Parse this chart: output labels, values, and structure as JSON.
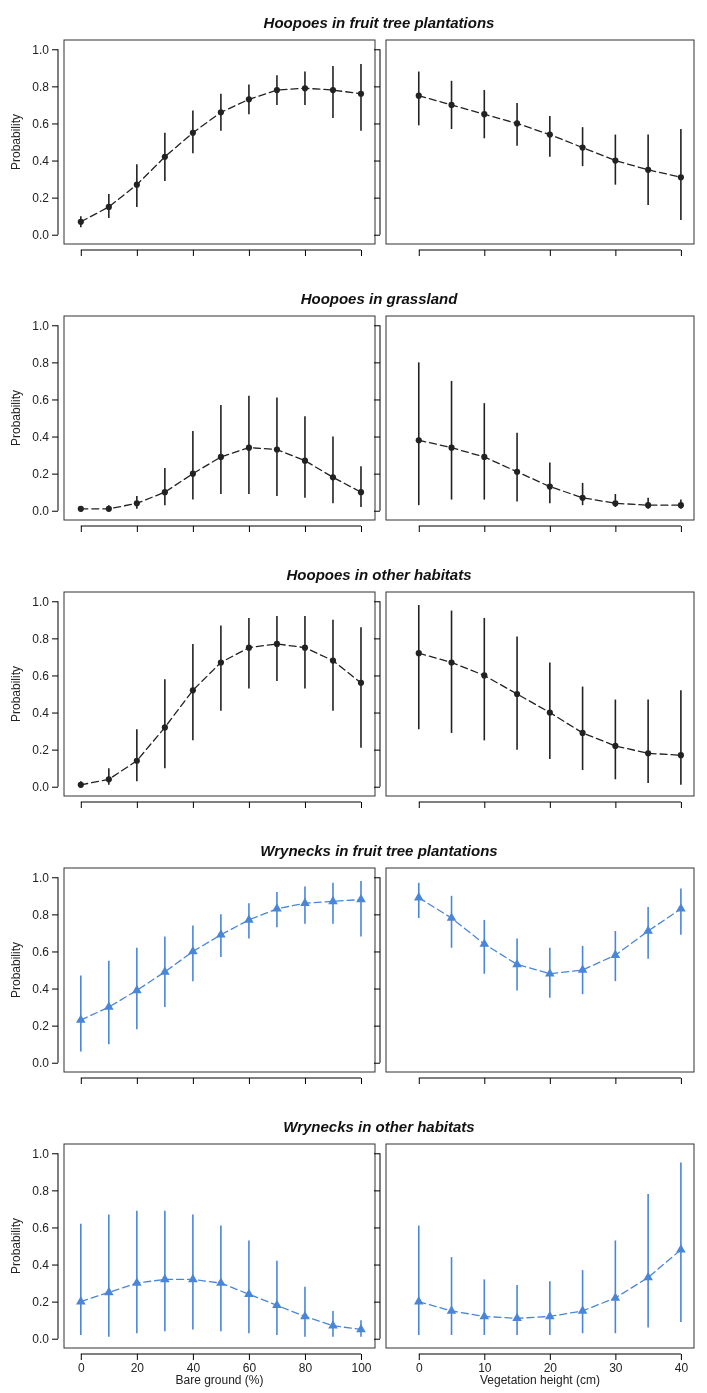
{
  "chart_data": [
    {
      "type": "line",
      "title": "Hoopoes in fruit tree plantations",
      "ylabel": "Probability",
      "x": [
        0,
        10,
        20,
        30,
        40,
        50,
        60,
        70,
        80,
        90,
        100
      ],
      "xlim": [
        -6,
        105
      ],
      "xticks": [
        0,
        20,
        40,
        60,
        80,
        100
      ],
      "ylim": [
        -0.05,
        1.05
      ],
      "yticks": [
        {
          "value": 0,
          "label": "0.0"
        },
        {
          "value": 0.2,
          "label": "0.2"
        },
        {
          "value": 0.4,
          "label": "0.4"
        },
        {
          "value": 0.6,
          "label": "0.6"
        },
        {
          "value": 0.8,
          "label": "0.8"
        },
        {
          "value": 1,
          "label": "1.0"
        }
      ],
      "tick_labels": "y",
      "marker": "circle",
      "line_style": "dashed",
      "series": [
        {
          "color": "#222222",
          "values": [
            0.07,
            0.15,
            0.27,
            0.42,
            0.55,
            0.66,
            0.73,
            0.78,
            0.79,
            0.78,
            0.76
          ],
          "errors": [
            [
              0.04,
              0.1
            ],
            [
              0.09,
              0.22
            ],
            [
              0.15,
              0.38
            ],
            [
              0.29,
              0.55
            ],
            [
              0.44,
              0.67
            ],
            [
              0.56,
              0.76
            ],
            [
              0.65,
              0.81
            ],
            [
              0.7,
              0.86
            ],
            [
              0.7,
              0.88
            ],
            [
              0.63,
              0.91
            ],
            [
              0.56,
              0.92
            ]
          ]
        }
      ]
    },
    {
      "type": "line",
      "x": [
        0,
        5,
        10,
        15,
        20,
        25,
        30,
        35,
        40
      ],
      "xlim": [
        -5,
        42
      ],
      "xticks": [
        0,
        10,
        20,
        30,
        40
      ],
      "ylim": [
        -0.05,
        1.05
      ],
      "yticks": [
        0,
        0.2,
        0.4,
        0.6,
        0.8,
        1
      ],
      "tick_labels": false,
      "marker": "circle",
      "line_style": "dashed",
      "series": [
        {
          "color": "#222222",
          "values": [
            0.75,
            0.7,
            0.65,
            0.6,
            0.54,
            0.47,
            0.4,
            0.35,
            0.31
          ],
          "errors": [
            [
              0.59,
              0.88
            ],
            [
              0.57,
              0.83
            ],
            [
              0.52,
              0.78
            ],
            [
              0.48,
              0.71
            ],
            [
              0.42,
              0.64
            ],
            [
              0.37,
              0.58
            ],
            [
              0.27,
              0.54
            ],
            [
              0.16,
              0.54
            ],
            [
              0.08,
              0.57
            ]
          ]
        }
      ]
    },
    {
      "type": "line",
      "title": "Hoopoes in grassland",
      "ylabel": "Probability",
      "x": [
        0,
        10,
        20,
        30,
        40,
        50,
        60,
        70,
        80,
        90,
        100
      ],
      "xlim": [
        -6,
        105
      ],
      "xticks": [
        0,
        20,
        40,
        60,
        80,
        100
      ],
      "ylim": [
        -0.05,
        1.05
      ],
      "yticks": [
        {
          "value": 0,
          "label": "0.0"
        },
        {
          "value": 0.2,
          "label": "0.2"
        },
        {
          "value": 0.4,
          "label": "0.4"
        },
        {
          "value": 0.6,
          "label": "0.6"
        },
        {
          "value": 0.8,
          "label": "0.8"
        },
        {
          "value": 1,
          "label": "1.0"
        }
      ],
      "tick_labels": "y",
      "marker": "circle",
      "line_style": "dashed",
      "series": [
        {
          "color": "#222222",
          "values": [
            0.01,
            0.01,
            0.04,
            0.1,
            0.2,
            0.29,
            0.34,
            0.33,
            0.27,
            0.18,
            0.1
          ],
          "errors": [
            [
              0,
              0.02
            ],
            [
              0,
              0.03
            ],
            [
              0.01,
              0.08
            ],
            [
              0.03,
              0.23
            ],
            [
              0.06,
              0.43
            ],
            [
              0.09,
              0.57
            ],
            [
              0.09,
              0.62
            ],
            [
              0.08,
              0.61
            ],
            [
              0.07,
              0.51
            ],
            [
              0.04,
              0.4
            ],
            [
              0.02,
              0.24
            ]
          ]
        }
      ]
    },
    {
      "type": "line",
      "x": [
        0,
        5,
        10,
        15,
        20,
        25,
        30,
        35,
        40
      ],
      "xlim": [
        -5,
        42
      ],
      "xticks": [
        0,
        10,
        20,
        30,
        40
      ],
      "ylim": [
        -0.05,
        1.05
      ],
      "yticks": [
        0,
        0.2,
        0.4,
        0.6,
        0.8,
        1
      ],
      "tick_labels": false,
      "marker": "circle",
      "line_style": "dashed",
      "series": [
        {
          "color": "#222222",
          "values": [
            0.38,
            0.34,
            0.29,
            0.21,
            0.13,
            0.07,
            0.04,
            0.03,
            0.03
          ],
          "errors": [
            [
              0.03,
              0.8
            ],
            [
              0.06,
              0.7
            ],
            [
              0.06,
              0.58
            ],
            [
              0.05,
              0.42
            ],
            [
              0.04,
              0.26
            ],
            [
              0.03,
              0.15
            ],
            [
              0.02,
              0.09
            ],
            [
              0.01,
              0.07
            ],
            [
              0.01,
              0.06
            ]
          ]
        }
      ]
    },
    {
      "type": "line",
      "title": "Hoopoes in other habitats",
      "ylabel": "Probability",
      "x": [
        0,
        10,
        20,
        30,
        40,
        50,
        60,
        70,
        80,
        90,
        100
      ],
      "xlim": [
        -6,
        105
      ],
      "xticks": [
        0,
        20,
        40,
        60,
        80,
        100
      ],
      "ylim": [
        -0.05,
        1.05
      ],
      "yticks": [
        {
          "value": 0,
          "label": "0.0"
        },
        {
          "value": 0.2,
          "label": "0.2"
        },
        {
          "value": 0.4,
          "label": "0.4"
        },
        {
          "value": 0.6,
          "label": "0.6"
        },
        {
          "value": 0.8,
          "label": "0.8"
        },
        {
          "value": 1,
          "label": "1.0"
        }
      ],
      "tick_labels": "y",
      "marker": "circle",
      "line_style": "dashed",
      "series": [
        {
          "color": "#222222",
          "values": [
            0.01,
            0.04,
            0.14,
            0.32,
            0.52,
            0.67,
            0.75,
            0.77,
            0.75,
            0.68,
            0.56
          ],
          "errors": [
            [
              0,
              0.03
            ],
            [
              0.01,
              0.1
            ],
            [
              0.03,
              0.31
            ],
            [
              0.1,
              0.58
            ],
            [
              0.25,
              0.77
            ],
            [
              0.41,
              0.87
            ],
            [
              0.53,
              0.91
            ],
            [
              0.57,
              0.92
            ],
            [
              0.53,
              0.92
            ],
            [
              0.41,
              0.9
            ],
            [
              0.21,
              0.86
            ]
          ]
        }
      ]
    },
    {
      "type": "line",
      "x": [
        0,
        5,
        10,
        15,
        20,
        25,
        30,
        35,
        40
      ],
      "xlim": [
        -5,
        42
      ],
      "xticks": [
        0,
        10,
        20,
        30,
        40
      ],
      "ylim": [
        -0.05,
        1.05
      ],
      "yticks": [
        0,
        0.2,
        0.4,
        0.6,
        0.8,
        1
      ],
      "tick_labels": false,
      "marker": "circle",
      "line_style": "dashed",
      "series": [
        {
          "color": "#222222",
          "values": [
            0.72,
            0.67,
            0.6,
            0.5,
            0.4,
            0.29,
            0.22,
            0.18,
            0.17
          ],
          "errors": [
            [
              0.31,
              0.98
            ],
            [
              0.29,
              0.95
            ],
            [
              0.25,
              0.91
            ],
            [
              0.2,
              0.81
            ],
            [
              0.15,
              0.67
            ],
            [
              0.09,
              0.54
            ],
            [
              0.04,
              0.47
            ],
            [
              0.02,
              0.47
            ],
            [
              0.01,
              0.52
            ]
          ]
        }
      ]
    },
    {
      "type": "line",
      "title": "Wrynecks in fruit tree plantations",
      "ylabel": "Probability",
      "x": [
        0,
        10,
        20,
        30,
        40,
        50,
        60,
        70,
        80,
        90,
        100
      ],
      "xlim": [
        -6,
        105
      ],
      "xticks": [
        0,
        20,
        40,
        60,
        80,
        100
      ],
      "ylim": [
        -0.05,
        1.05
      ],
      "yticks": [
        {
          "value": 0,
          "label": "0.0"
        },
        {
          "value": 0.2,
          "label": "0.2"
        },
        {
          "value": 0.4,
          "label": "0.4"
        },
        {
          "value": 0.6,
          "label": "0.6"
        },
        {
          "value": 0.8,
          "label": "0.8"
        },
        {
          "value": 1,
          "label": "1.0"
        }
      ],
      "tick_labels": "y",
      "marker": "triangle",
      "line_style": "dashed",
      "series": [
        {
          "color": "#4a86d8",
          "values": [
            0.23,
            0.3,
            0.39,
            0.49,
            0.6,
            0.69,
            0.77,
            0.83,
            0.86,
            0.87,
            0.88
          ],
          "errors": [
            [
              0.06,
              0.47
            ],
            [
              0.1,
              0.55
            ],
            [
              0.18,
              0.62
            ],
            [
              0.3,
              0.68
            ],
            [
              0.44,
              0.74
            ],
            [
              0.57,
              0.8
            ],
            [
              0.67,
              0.86
            ],
            [
              0.73,
              0.92
            ],
            [
              0.75,
              0.95
            ],
            [
              0.75,
              0.97
            ],
            [
              0.68,
              0.98
            ]
          ]
        }
      ]
    },
    {
      "type": "line",
      "x": [
        0,
        5,
        10,
        15,
        20,
        25,
        30,
        35,
        40
      ],
      "xlim": [
        -5,
        42
      ],
      "xticks": [
        0,
        10,
        20,
        30,
        40
      ],
      "ylim": [
        -0.05,
        1.05
      ],
      "yticks": [
        0,
        0.2,
        0.4,
        0.6,
        0.8,
        1
      ],
      "tick_labels": false,
      "marker": "triangle",
      "line_style": "dashed",
      "series": [
        {
          "color": "#4a86d8",
          "values": [
            0.89,
            0.78,
            0.64,
            0.53,
            0.48,
            0.5,
            0.58,
            0.71,
            0.83
          ],
          "errors": [
            [
              0.78,
              0.97
            ],
            [
              0.62,
              0.9
            ],
            [
              0.48,
              0.77
            ],
            [
              0.39,
              0.67
            ],
            [
              0.35,
              0.62
            ],
            [
              0.37,
              0.63
            ],
            [
              0.44,
              0.71
            ],
            [
              0.56,
              0.84
            ],
            [
              0.69,
              0.94
            ]
          ]
        }
      ]
    },
    {
      "type": "line",
      "title": "Wrynecks in other habitats",
      "ylabel": "Probability",
      "xlabel": "Bare ground (%)",
      "x": [
        0,
        10,
        20,
        30,
        40,
        50,
        60,
        70,
        80,
        90,
        100
      ],
      "xlim": [
        -6,
        105
      ],
      "xticks": [
        0,
        20,
        40,
        60,
        80,
        100
      ],
      "ylim": [
        -0.05,
        1.05
      ],
      "yticks": [
        {
          "value": 0,
          "label": "0.0"
        },
        {
          "value": 0.2,
          "label": "0.2"
        },
        {
          "value": 0.4,
          "label": "0.4"
        },
        {
          "value": 0.6,
          "label": "0.6"
        },
        {
          "value": 0.8,
          "label": "0.8"
        },
        {
          "value": 1,
          "label": "1.0"
        }
      ],
      "marker": "triangle",
      "line_style": "dashed",
      "series": [
        {
          "color": "#4a86d8",
          "values": [
            0.2,
            0.25,
            0.3,
            0.32,
            0.32,
            0.3,
            0.24,
            0.18,
            0.12,
            0.07,
            0.05
          ],
          "errors": [
            [
              0.02,
              0.62
            ],
            [
              0.01,
              0.67
            ],
            [
              0.03,
              0.69
            ],
            [
              0.04,
              0.69
            ],
            [
              0.05,
              0.67
            ],
            [
              0.04,
              0.61
            ],
            [
              0.03,
              0.53
            ],
            [
              0.02,
              0.42
            ],
            [
              0.01,
              0.28
            ],
            [
              0.01,
              0.15
            ],
            [
              0.01,
              0.1
            ]
          ]
        }
      ]
    },
    {
      "type": "line",
      "xlabel": "Vegetation height (cm)",
      "x": [
        0,
        5,
        10,
        15,
        20,
        25,
        30,
        35,
        40
      ],
      "xlim": [
        -5,
        42
      ],
      "xticks": [
        0,
        10,
        20,
        30,
        40
      ],
      "ylim": [
        -0.05,
        1.05
      ],
      "yticks": [
        0,
        0.2,
        0.4,
        0.6,
        0.8,
        1
      ],
      "tick_labels": "x",
      "marker": "triangle",
      "line_style": "dashed",
      "series": [
        {
          "color": "#4a86d8",
          "values": [
            0.2,
            0.15,
            0.12,
            0.11,
            0.12,
            0.15,
            0.22,
            0.33,
            0.48
          ],
          "errors": [
            [
              0.02,
              0.61
            ],
            [
              0.02,
              0.44
            ],
            [
              0.02,
              0.32
            ],
            [
              0.02,
              0.29
            ],
            [
              0.02,
              0.31
            ],
            [
              0.03,
              0.37
            ],
            [
              0.03,
              0.53
            ],
            [
              0.06,
              0.78
            ],
            [
              0.09,
              0.95
            ]
          ]
        }
      ]
    }
  ]
}
